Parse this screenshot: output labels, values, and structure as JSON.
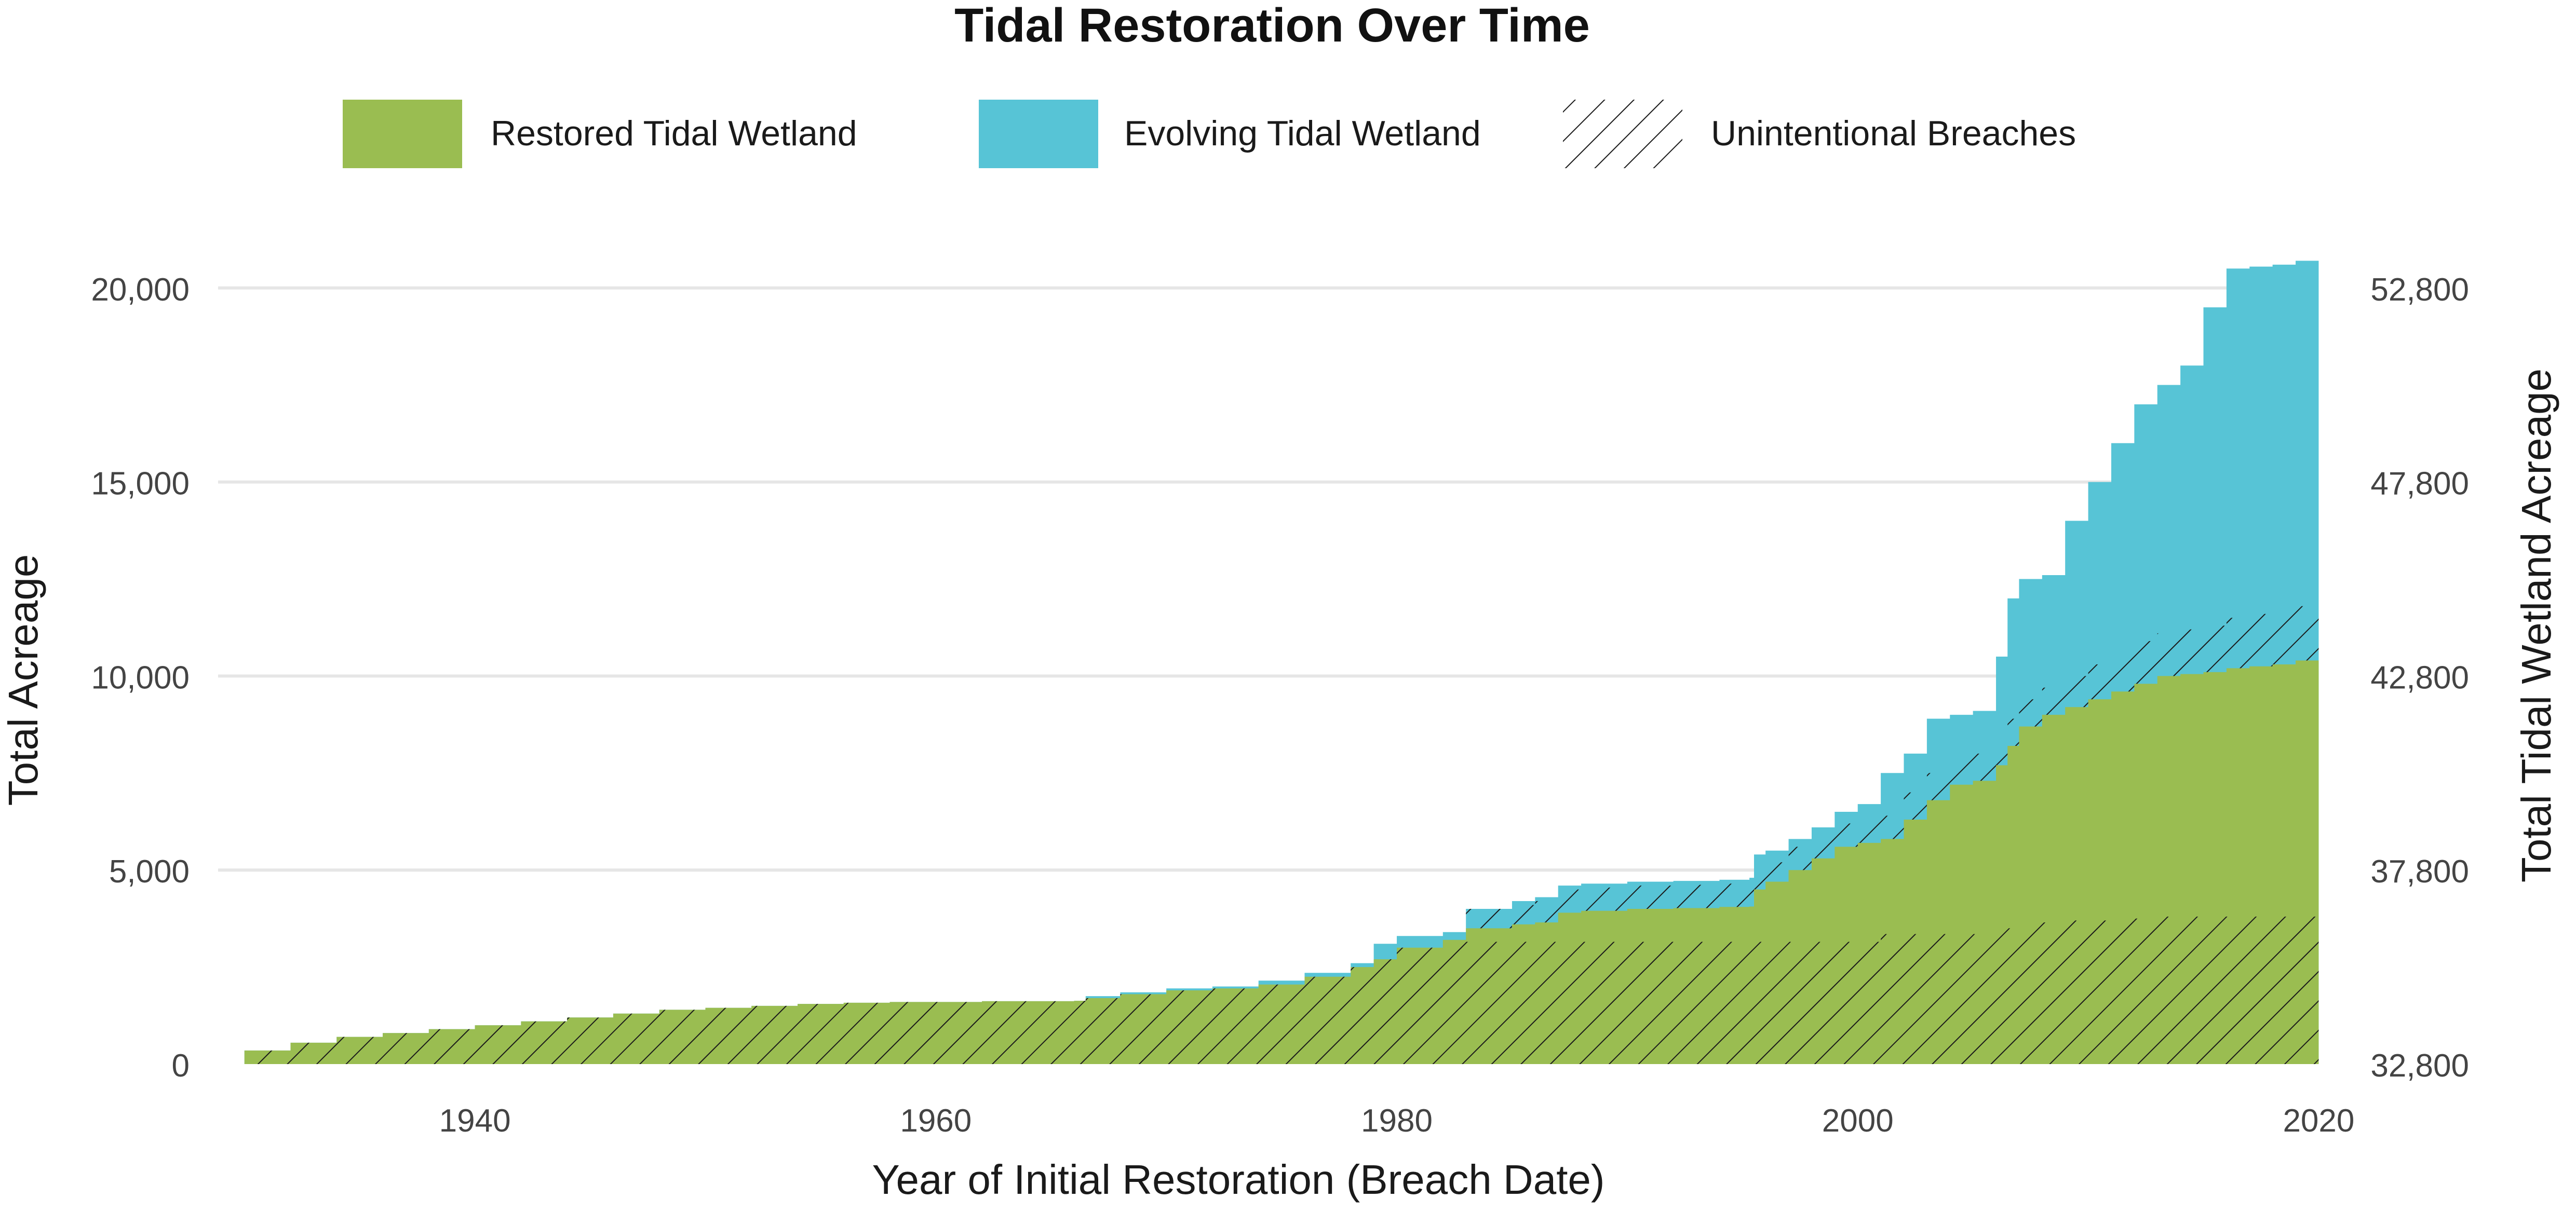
{
  "chart_data": {
    "type": "area",
    "title": "Tidal Restoration Over Time",
    "xlabel": "Year of Initial Restoration (Breach Date)",
    "ylabel": "Total Acreage",
    "y2label": "Total Tidal Wetland Acreage",
    "xlim": [
      1928,
      2021.5
    ],
    "ylim": [
      0,
      21000
    ],
    "xticks": [
      1940,
      1960,
      1980,
      2000,
      2020
    ],
    "yticks": [
      0,
      5000,
      10000,
      15000,
      20000
    ],
    "ytick_labels": [
      "0",
      "5,000",
      "10,000",
      "15,000",
      "20,000"
    ],
    "y2ticks": [
      0,
      5000,
      10000,
      15000,
      20000
    ],
    "y2tick_labels": [
      "32,800",
      "37,800",
      "42,800",
      "47,800",
      "52,800"
    ],
    "grid": "horizontal",
    "legend_position": "top",
    "legend": [
      {
        "label": "Restored Tidal Wetland",
        "color": "#9abd51",
        "swatch": "fill"
      },
      {
        "label": "Evolving Tidal Wetland",
        "color": "#57c4d6",
        "swatch": "fill"
      },
      {
        "label": "Unintentional Breaches",
        "color": "#1a1a1a",
        "swatch": "hatch"
      }
    ],
    "colors": {
      "restored": "#9abd51",
      "evolving": "#57c4d6",
      "hatch": "#1a1a1a",
      "grid": "#e6e6e6",
      "text": "#444444"
    },
    "series": [
      {
        "name": "Restored Tidal Wetland",
        "type": "area-step",
        "x": [
          1930,
          1932,
          1934,
          1936,
          1938,
          1940,
          1942,
          1944,
          1946,
          1948,
          1950,
          1952,
          1954,
          1956,
          1958,
          1960,
          1962,
          1964,
          1966,
          1966.5,
          1968,
          1970,
          1972,
          1974,
          1976,
          1978,
          1979,
          1980,
          1982,
          1983,
          1985,
          1986,
          1987,
          1988,
          1990,
          1992,
          1994,
          1995.3,
          1995.5,
          1996,
          1997,
          1998,
          1999,
          2000,
          2001,
          2002,
          2003,
          2004,
          2005,
          2006,
          2006.5,
          2007,
          2008,
          2009,
          2010,
          2011,
          2012,
          2013,
          2014,
          2015,
          2016,
          2017,
          2018,
          2019,
          2020
        ],
        "y": [
          350,
          550,
          700,
          800,
          900,
          1000,
          1100,
          1200,
          1300,
          1400,
          1450,
          1500,
          1550,
          1580,
          1600,
          1600,
          1620,
          1620,
          1630,
          1700,
          1800,
          1900,
          1950,
          2050,
          2250,
          2500,
          2700,
          3000,
          3200,
          3500,
          3600,
          3650,
          3900,
          3950,
          4000,
          4020,
          4050,
          4060,
          4500,
          4700,
          5000,
          5300,
          5600,
          5700,
          5800,
          6300,
          6800,
          7200,
          7300,
          7700,
          8200,
          8700,
          9000,
          9200,
          9400,
          9600,
          9800,
          10000,
          10050,
          10100,
          10200,
          10250,
          10300,
          10400,
          10600
        ]
      },
      {
        "name": "Evolving Tidal Wetland",
        "type": "area-step",
        "x": [
          1930,
          1932,
          1934,
          1936,
          1938,
          1940,
          1942,
          1944,
          1946,
          1948,
          1950,
          1952,
          1954,
          1956,
          1958,
          1960,
          1962,
          1964,
          1966,
          1966.5,
          1968,
          1970,
          1972,
          1974,
          1976,
          1978,
          1979,
          1980,
          1982,
          1983,
          1985,
          1986,
          1987,
          1988,
          1990,
          1992,
          1994,
          1995.3,
          1995.5,
          1996,
          1997,
          1998,
          1999,
          2000,
          2001,
          2002,
          2003,
          2004,
          2005,
          2006,
          2006.5,
          2007,
          2008,
          2009,
          2010,
          2011,
          2012,
          2013,
          2014,
          2015,
          2016,
          2017,
          2018,
          2019,
          2020
        ],
        "y": [
          350,
          550,
          700,
          800,
          900,
          1000,
          1100,
          1200,
          1300,
          1400,
          1450,
          1500,
          1550,
          1580,
          1600,
          1600,
          1620,
          1620,
          1630,
          1750,
          1850,
          1950,
          2000,
          2150,
          2350,
          2600,
          3100,
          3300,
          3400,
          4000,
          4200,
          4300,
          4600,
          4650,
          4700,
          4720,
          4750,
          4800,
          5400,
          5500,
          5800,
          6100,
          6500,
          6700,
          7500,
          8000,
          8900,
          9000,
          9100,
          10500,
          12000,
          12500,
          12600,
          14000,
          15000,
          16000,
          17000,
          17500,
          18000,
          19500,
          20500,
          20550,
          20600,
          20700,
          20900
        ]
      },
      {
        "name": "Unintentional Breaches",
        "type": "hatched-band",
        "x": [
          1930,
          1932,
          1934,
          1936,
          1938,
          1940,
          1942,
          1944,
          1946,
          1948,
          1950,
          1952,
          1954,
          1956,
          1958,
          1960,
          1962,
          1964,
          1966,
          1966.5,
          1968,
          1970,
          1972,
          1974,
          1976,
          1978,
          1979,
          1980,
          1982,
          1983,
          1985,
          1986,
          1987,
          1988,
          1990,
          1992,
          1994,
          1995.3,
          1995.5,
          1996,
          1997,
          1998,
          1999,
          2000,
          2001,
          2002,
          2003,
          2004,
          2005,
          2006,
          2006.5,
          2007,
          2008,
          2009,
          2010,
          2011,
          2012,
          2013,
          2014,
          2015,
          2016,
          2017,
          2018,
          2019,
          2020
        ],
        "lower": [
          0,
          0,
          0,
          0,
          0,
          0,
          0,
          0,
          0,
          0,
          0,
          0,
          0,
          0,
          0,
          0,
          0,
          0,
          0,
          0,
          0,
          0,
          0,
          0,
          0,
          0,
          0,
          0,
          0,
          0,
          0,
          0,
          0,
          0,
          0,
          0,
          0,
          0,
          0,
          0,
          0,
          0,
          0,
          0,
          0,
          0,
          0,
          0,
          0,
          0,
          0,
          0,
          0,
          0,
          0,
          0,
          0,
          0,
          0,
          0,
          0,
          0,
          0,
          0,
          0
        ],
        "upper": [
          350,
          550,
          700,
          800,
          900,
          1000,
          1100,
          1200,
          1300,
          1400,
          1450,
          1500,
          1550,
          1580,
          1600,
          1600,
          1620,
          1620,
          1630,
          1700,
          1800,
          1900,
          1950,
          2050,
          2250,
          2500,
          2700,
          3000,
          3200,
          3150,
          3150,
          3150,
          3150,
          3150,
          3150,
          3150,
          3150,
          3150,
          3150,
          3150,
          3150,
          3150,
          3150,
          3150,
          3350,
          3350,
          3350,
          3350,
          3350,
          3500,
          3500,
          3650,
          3650,
          3700,
          3700,
          3700,
          3750,
          3800,
          3800,
          3800,
          3800,
          3800,
          3800,
          3800,
          3800
        ]
      },
      {
        "name": "Unintentional Breaches (upper band)",
        "type": "hatched-band",
        "x": [
          1983,
          1985,
          1986,
          1987,
          1988,
          1990,
          1992,
          1994,
          1995.3,
          1995.5,
          1996,
          1997,
          1998,
          1999,
          2000,
          2001,
          2002,
          2003,
          2004,
          2005,
          2006,
          2006.5,
          2007,
          2008,
          2009,
          2010,
          2011,
          2012,
          2013,
          2014,
          2015,
          2016,
          2017,
          2018,
          2019,
          2020
        ],
        "lower": [
          3500,
          3600,
          3650,
          3900,
          3950,
          4000,
          4020,
          4050,
          4060,
          4500,
          4700,
          5000,
          5300,
          5600,
          5700,
          5800,
          6300,
          6800,
          7200,
          7300,
          7700,
          8200,
          8700,
          9000,
          9200,
          9400,
          9600,
          9800,
          10000,
          10050,
          10100,
          10200,
          10250,
          10300,
          10400,
          10600
        ],
        "upper": [
          4000,
          4100,
          4200,
          4500,
          4550,
          4600,
          4620,
          4650,
          4660,
          5000,
          5200,
          5600,
          5900,
          6200,
          6300,
          6400,
          7000,
          7500,
          7900,
          8000,
          8400,
          8900,
          9400,
          9700,
          10000,
          10300,
          10600,
          10900,
          11100,
          11200,
          11300,
          11500,
          11600,
          11700,
          11800,
          11900
        ]
      }
    ]
  }
}
